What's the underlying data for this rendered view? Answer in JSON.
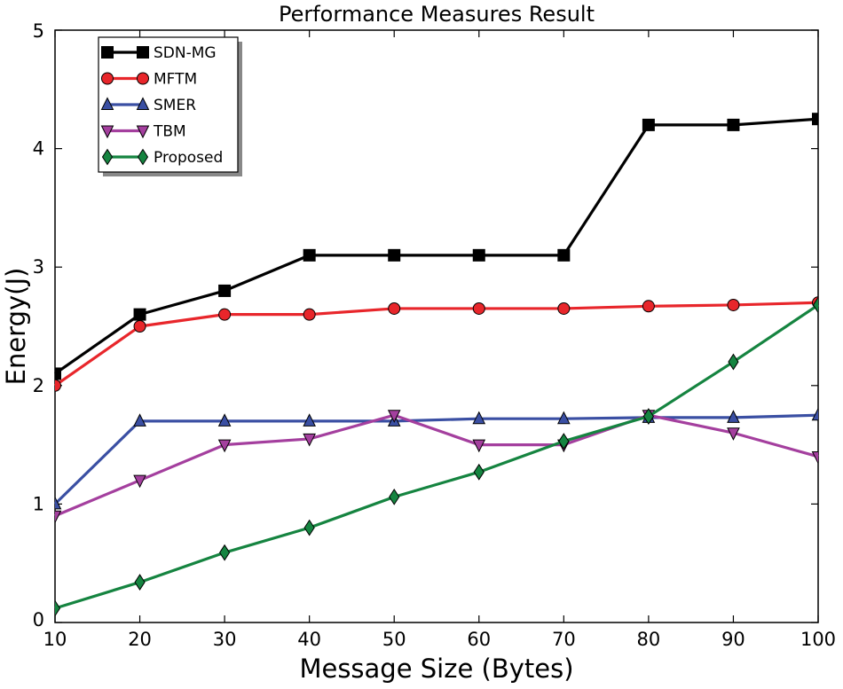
{
  "chart_data": {
    "type": "line",
    "title": "Performance Measures Result",
    "xlabel": "Message Size (Bytes)",
    "ylabel": "Energy(J)",
    "x": [
      10,
      20,
      30,
      40,
      50,
      60,
      70,
      80,
      90,
      100
    ],
    "xlim": [
      10,
      100
    ],
    "ylim": [
      0,
      5
    ],
    "xticks": [
      "10",
      "20",
      "30",
      "40",
      "50",
      "60",
      "70",
      "80",
      "90",
      "100"
    ],
    "yticks": [
      "0",
      "1",
      "2",
      "3",
      "4",
      "5"
    ],
    "legend_position": "top-left",
    "grid": false,
    "series": [
      {
        "name": "SDN-MG",
        "color": "#000000",
        "marker": "square",
        "values": [
          2.1,
          2.6,
          2.8,
          3.1,
          3.1,
          3.1,
          3.1,
          4.2,
          4.2,
          4.25
        ]
      },
      {
        "name": "MFTM",
        "color": "#e8262b",
        "marker": "circle",
        "values": [
          2.0,
          2.5,
          2.6,
          2.6,
          2.65,
          2.65,
          2.65,
          2.67,
          2.68,
          2.7
        ]
      },
      {
        "name": "SMER",
        "color": "#3a4fa3",
        "marker": "triangle-up",
        "values": [
          1.0,
          1.7,
          1.7,
          1.7,
          1.7,
          1.72,
          1.72,
          1.73,
          1.73,
          1.75
        ]
      },
      {
        "name": "TBM",
        "color": "#a43f9e",
        "marker": "triangle-down",
        "values": [
          0.9,
          1.2,
          1.5,
          1.55,
          1.75,
          1.5,
          1.5,
          1.75,
          1.6,
          1.4
        ]
      },
      {
        "name": "Proposed",
        "color": "#158440",
        "marker": "diamond",
        "values": [
          0.12,
          0.34,
          0.59,
          0.8,
          1.06,
          1.27,
          1.53,
          1.74,
          2.2,
          2.68
        ]
      }
    ]
  }
}
